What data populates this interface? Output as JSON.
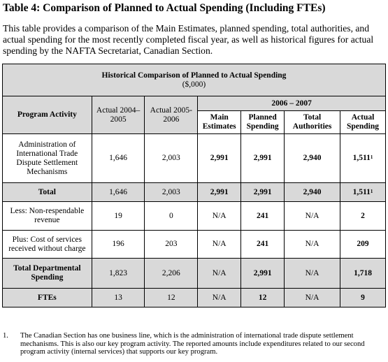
{
  "heading": "Table 4:  Comparison of Planned to Actual Spending (Including FTEs)",
  "intro": "This table provides a comparison of the Main Estimates, planned spending, total authorities, and actual spending for the most recently completed fiscal year, as well as historical figures for actual spending by the NAFTA Secretariat, Canadian Section.",
  "table": {
    "title": "Historical Comparison of Planned to Actual Spending",
    "units": "($,000)",
    "period": "2006 – 2007",
    "headers": {
      "activity": "Program Activity",
      "actual_0405": "Actual 2004–2005",
      "actual_0506": "Actual 2005-2006",
      "main": "Main Estimates",
      "planned": "Planned Spending",
      "authorities": "Total Authorities",
      "actual": "Actual Spending"
    },
    "rows": [
      {
        "label": "Administration of International Trade Dispute Settlement Mechanisms",
        "a0405": "1,646",
        "a0506": "2,003",
        "main": "2,991",
        "planned": "2,991",
        "auth": "2,940",
        "actual": "1,511",
        "sup": "1"
      },
      {
        "label": "Total",
        "a0405": "1,646",
        "a0506": "2,003",
        "main": "2,991",
        "planned": "2,991",
        "auth": "2,940",
        "actual": "1,511",
        "sup": "1"
      },
      {
        "label": "Less:  Non-respendable revenue",
        "a0405": "19",
        "a0506": "0",
        "main": "N/A",
        "planned": "241",
        "auth": "N/A",
        "actual": "2"
      },
      {
        "label": "Plus:  Cost of services received without charge",
        "a0405": "196",
        "a0506": "203",
        "main": "N/A",
        "planned": "241",
        "auth": "N/A",
        "actual": "209"
      },
      {
        "label": "Total Departmental Spending",
        "a0405": "1,823",
        "a0506": "2,206",
        "main": "N/A",
        "planned": "2,991",
        "auth": "N/A",
        "actual": "1,718"
      },
      {
        "label": "FTEs",
        "a0405": "13",
        "a0506": "12",
        "main": "N/A",
        "planned": "12",
        "auth": "N/A",
        "actual": "9"
      }
    ]
  },
  "footnote": {
    "number": "1.",
    "text": "The Canadian Section has one business line, which is the administration of international trade dispute settlement mechanisms. This is also our key program activity.  The reported amounts include expenditures related to our second program activity (internal services) that supports our key program."
  }
}
